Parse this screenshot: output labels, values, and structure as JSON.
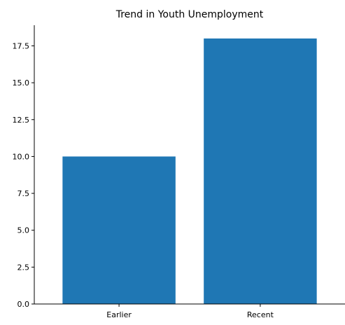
{
  "chart_data": {
    "type": "bar",
    "title": "Trend in Youth Unemployment",
    "xlabel": "",
    "ylabel": "",
    "categories": [
      "Earlier",
      "Recent"
    ],
    "values": [
      10,
      18
    ],
    "ylim": [
      0,
      18.9
    ],
    "yticks": [
      0,
      2.5,
      5,
      7.5,
      10,
      12.5,
      15,
      17.5
    ],
    "ytick_labels": [
      "0.0",
      "2.5",
      "5.0",
      "7.5",
      "10.0",
      "12.5",
      "15.0",
      "17.5"
    ],
    "grid": false,
    "legend": "none",
    "bar_color": "#1f77b4"
  }
}
